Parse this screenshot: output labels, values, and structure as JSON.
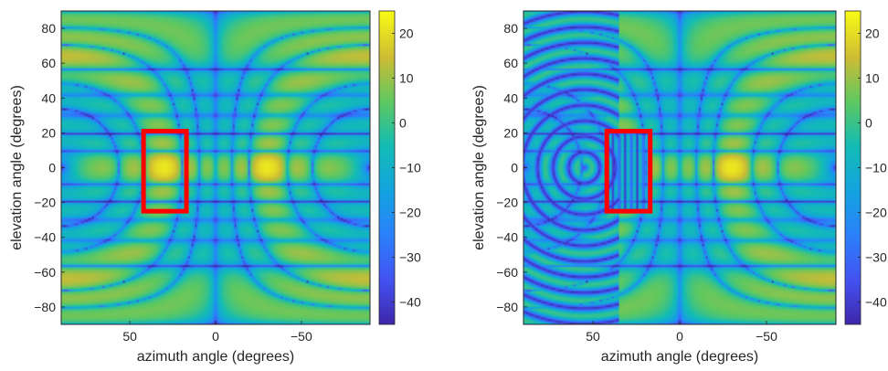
{
  "chart_data": [
    {
      "type": "heatmap",
      "title": "",
      "xlabel": "azimuth angle (degrees)",
      "ylabel": "elevation angle (degrees)",
      "xlim": [
        90,
        -90
      ],
      "ylim": [
        -90,
        90
      ],
      "x_ticks": [
        50,
        0,
        -50
      ],
      "x_tick_labels": [
        "50",
        "0",
        "−50"
      ],
      "y_ticks": [
        80,
        60,
        40,
        20,
        0,
        -20,
        -40,
        -60,
        -80
      ],
      "y_tick_labels": [
        "80",
        "60",
        "40",
        "20",
        "0",
        "−20",
        "−40",
        "−60",
        "−80"
      ],
      "colorbar": {
        "range": [
          -45,
          25
        ],
        "ticks": [
          20,
          10,
          0,
          -10,
          -20,
          -30,
          -40
        ],
        "tick_labels": [
          "20",
          "10",
          "0",
          "−10",
          "−20",
          "−30",
          "−40"
        ],
        "colormap": "parula"
      },
      "peak": {
        "azimuth": -30,
        "elevation": 0,
        "value": 22
      },
      "highlight_box": {
        "azimuth_range": [
          42,
          17
        ],
        "elevation_range": [
          -25,
          21
        ],
        "color": "#ff0000"
      },
      "grating_nulls_in_box": false
    },
    {
      "type": "heatmap",
      "title": "",
      "xlabel": "azimuth angle (degrees)",
      "ylabel": "elevation angle (degrees)",
      "xlim": [
        90,
        -90
      ],
      "ylim": [
        -90,
        90
      ],
      "x_ticks": [
        50,
        0,
        -50
      ],
      "x_tick_labels": [
        "50",
        "0",
        "−50"
      ],
      "y_ticks": [
        80,
        60,
        40,
        20,
        0,
        -20,
        -40,
        -60,
        -80
      ],
      "y_tick_labels": [
        "80",
        "60",
        "40",
        "20",
        "0",
        "−20",
        "−40",
        "−60",
        "−80"
      ],
      "colorbar": {
        "range": [
          -45,
          25
        ],
        "ticks": [
          20,
          10,
          0,
          -10,
          -20,
          -30,
          -40
        ],
        "tick_labels": [
          "20",
          "10",
          "0",
          "−10",
          "−20",
          "−30",
          "−40"
        ],
        "colormap": "parula"
      },
      "peak": {
        "azimuth": -30,
        "elevation": 0,
        "value": 22
      },
      "highlight_box": {
        "azimuth_range": [
          42,
          17
        ],
        "elevation_range": [
          -25,
          21
        ],
        "color": "#ff0000"
      },
      "grating_nulls_in_box": true
    }
  ]
}
